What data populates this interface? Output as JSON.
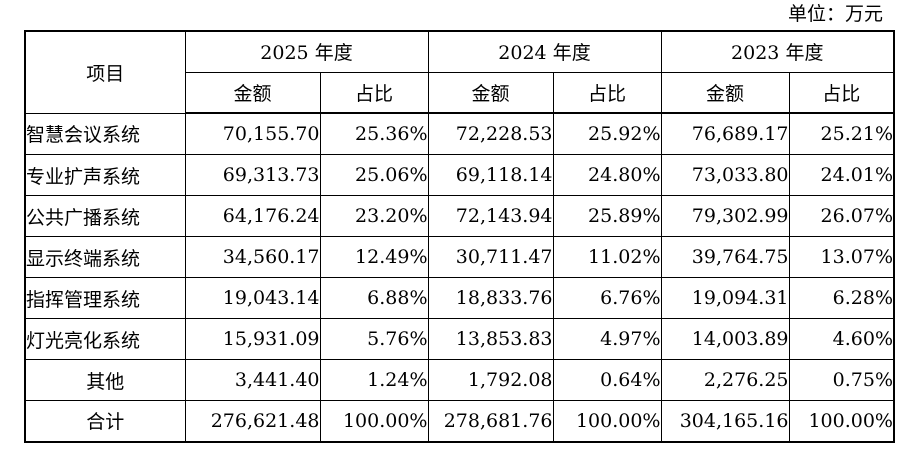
{
  "unit_label": "单位：万元",
  "header": {
    "item": "项目",
    "years": [
      "2025 年度",
      "2024 年度",
      "2023 年度"
    ],
    "amount": "金额",
    "ratio": "占比"
  },
  "rows": [
    {
      "name": "智慧会议系统",
      "v": [
        "70,155.70",
        "25.36%",
        "72,228.53",
        "25.92%",
        "76,689.17",
        "25.21%"
      ]
    },
    {
      "name": "专业扩声系统",
      "v": [
        "69,313.73",
        "25.06%",
        "69,118.14",
        "24.80%",
        "73,033.80",
        "24.01%"
      ]
    },
    {
      "name": "公共广播系统",
      "v": [
        "64,176.24",
        "23.20%",
        "72,143.94",
        "25.89%",
        "79,302.99",
        "26.07%"
      ]
    },
    {
      "name": "显示终端系统",
      "v": [
        "34,560.17",
        "12.49%",
        "30,711.47",
        "11.02%",
        "39,764.75",
        "13.07%"
      ]
    },
    {
      "name": "指挥管理系统",
      "v": [
        "19,043.14",
        "6.88%",
        "18,833.76",
        "6.76%",
        "19,094.31",
        "6.28%"
      ]
    },
    {
      "name": "灯光亮化系统",
      "v": [
        "15,931.09",
        "5.76%",
        "13,853.83",
        "4.97%",
        "14,003.89",
        "4.60%"
      ]
    },
    {
      "name": "其他",
      "v": [
        "3,441.40",
        "1.24%",
        "1,792.08",
        "0.64%",
        "2,276.25",
        "0.75%"
      ]
    }
  ],
  "total": {
    "name": "合计",
    "v": [
      "276,621.48",
      "100.00%",
      "278,681.76",
      "100.00%",
      "304,165.16",
      "100.00%"
    ]
  }
}
